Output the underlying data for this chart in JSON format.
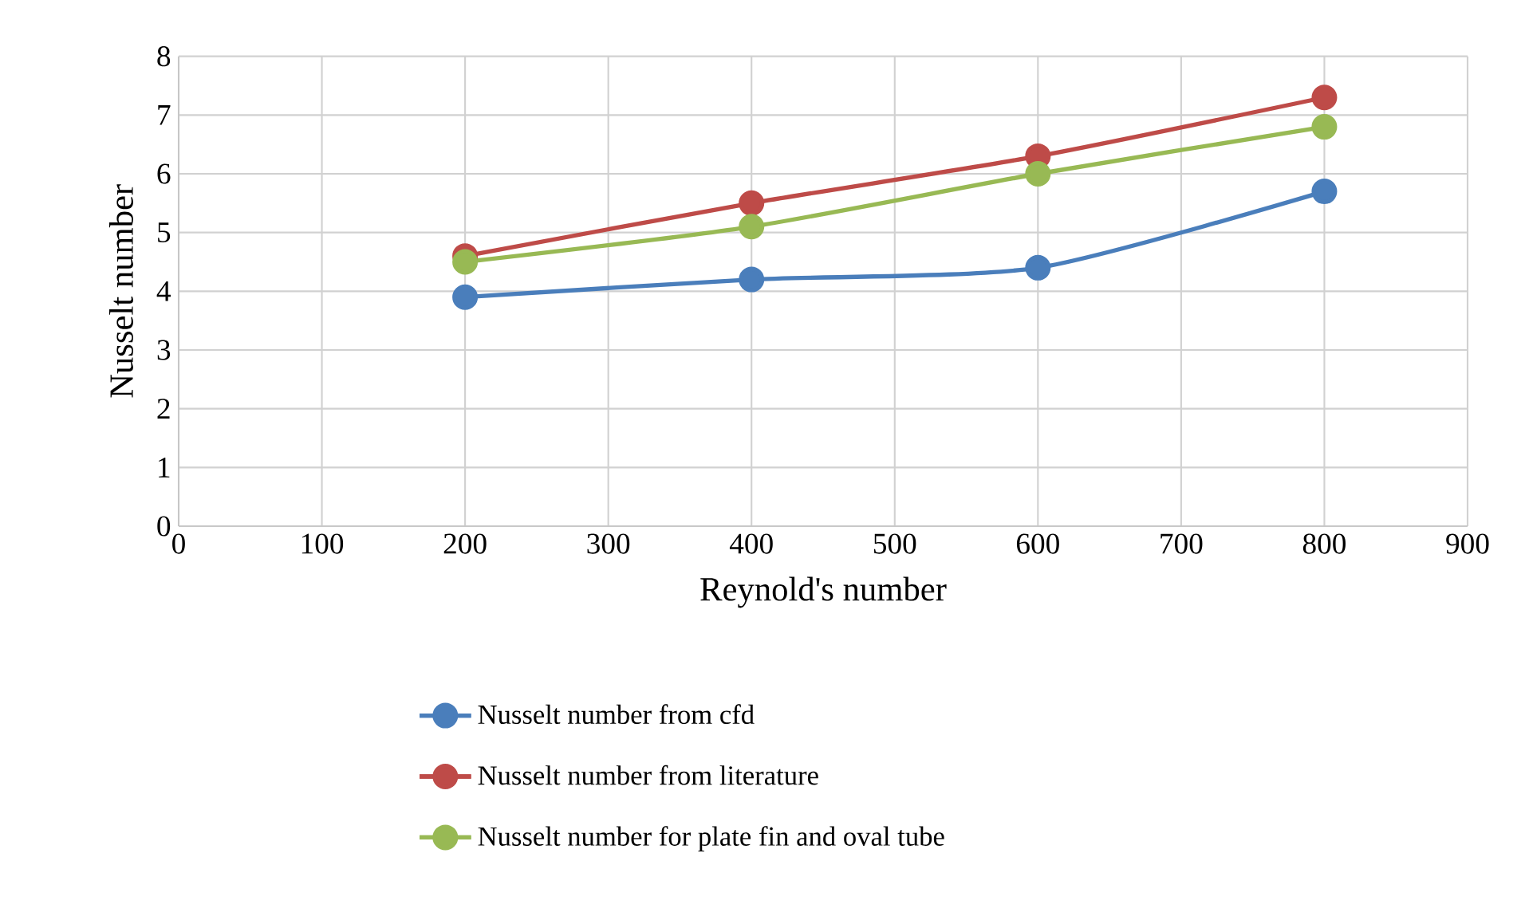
{
  "chart_data": {
    "type": "line",
    "xlabel": "Reynold's number",
    "ylabel": "Nusselt number",
    "x": [
      200,
      400,
      600,
      800
    ],
    "series": [
      {
        "name": "Nusselt number from cfd",
        "color": "#4a7ebb",
        "values": [
          3.9,
          4.2,
          4.4,
          5.7
        ]
      },
      {
        "name": "Nusselt number from literature",
        "color": "#be4b48",
        "values": [
          4.6,
          5.5,
          6.3,
          7.3
        ]
      },
      {
        "name": "Nusselt number for plate fin and oval tube",
        "color": "#98b954",
        "values": [
          4.5,
          5.1,
          6.0,
          6.8
        ]
      }
    ],
    "xlim": [
      0,
      900
    ],
    "xticks": [
      0,
      100,
      200,
      300,
      400,
      500,
      600,
      700,
      800,
      900
    ],
    "ylim": [
      0,
      8
    ],
    "yticks": [
      0,
      1,
      2,
      3,
      4,
      5,
      6,
      7,
      8
    ],
    "grid": true,
    "legend": "bottom",
    "marker": "circle",
    "line_style": "solid"
  }
}
